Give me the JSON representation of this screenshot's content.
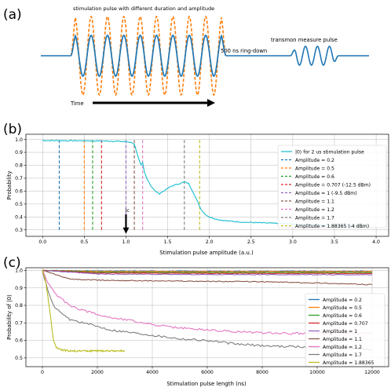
{
  "colors": {
    "c0": "#1f77b4",
    "c1": "#ff7f0e",
    "c2": "#2ca02c",
    "c3": "#d62728",
    "c4": "#9467bd",
    "c5": "#8c564b",
    "c6": "#e377c2",
    "c7": "#7f7f7f",
    "c8": "#bcbd22",
    "c9": "#17becf",
    "black": "#000000"
  },
  "panel_a": {
    "tag": "(a)",
    "pulse_label": "stimulation pulse with different duration and amplitude",
    "ringdown_label": "500 ns ring-down",
    "measure_label": "transmon measure pulse",
    "time_label": "Time"
  },
  "chart_data": [
    {
      "panel": "(b)",
      "type": "line",
      "xlabel": "Stimulation pulse amplitude (a.u.)",
      "ylabel": "Probability",
      "xlim": [
        -0.2,
        4.15
      ],
      "ylim": [
        0.25,
        1.04
      ],
      "xticks": [
        "0.0",
        "0.5",
        "1.0",
        "1.5",
        "2.0",
        "2.5",
        "3.0",
        "3.5",
        "4.0"
      ],
      "yticks": [
        "0.3",
        "0.4",
        "0.5",
        "0.6",
        "0.7",
        "0.8",
        "0.9",
        "1.0"
      ],
      "grid": true,
      "legend_position": "right",
      "annotation": {
        "text": "Ic",
        "x": 1.0,
        "arrow_from_y": 0.42,
        "arrow_to_y": 0.27
      },
      "series": [
        {
          "name": "|0⟩ for 2 us stimulation pulse",
          "color_key": "c9",
          "style": "solid",
          "points": [
            [
              0.0,
              0.992
            ],
            [
              0.3,
              0.99
            ],
            [
              0.5,
              0.99
            ],
            [
              0.7,
              0.988
            ],
            [
              0.9,
              0.986
            ],
            [
              1.0,
              0.982
            ],
            [
              1.05,
              0.98
            ],
            [
              1.1,
              0.965
            ],
            [
              1.15,
              0.85
            ],
            [
              1.18,
              0.8
            ],
            [
              1.2,
              0.82
            ],
            [
              1.22,
              0.75
            ],
            [
              1.25,
              0.7
            ],
            [
              1.3,
              0.64
            ],
            [
              1.35,
              0.6
            ],
            [
              1.4,
              0.58
            ],
            [
              1.45,
              0.6
            ],
            [
              1.5,
              0.62
            ],
            [
              1.55,
              0.64
            ],
            [
              1.6,
              0.65
            ],
            [
              1.65,
              0.66
            ],
            [
              1.7,
              0.67
            ],
            [
              1.75,
              0.66
            ],
            [
              1.8,
              0.6
            ],
            [
              1.85,
              0.53
            ],
            [
              1.9,
              0.46
            ],
            [
              1.95,
              0.42
            ],
            [
              2.0,
              0.4
            ],
            [
              2.1,
              0.38
            ],
            [
              2.2,
              0.37
            ],
            [
              2.4,
              0.36
            ],
            [
              2.6,
              0.355
            ],
            [
              2.8,
              0.35
            ],
            [
              3.0,
              0.345
            ],
            [
              3.2,
              0.34
            ],
            [
              3.5,
              0.335
            ],
            [
              3.9,
              0.333
            ]
          ]
        }
      ],
      "vlines": [
        {
          "name": "Amplitude = 0.2",
          "x": 0.2,
          "color_key": "c0"
        },
        {
          "name": "Amplitude = 0.5",
          "x": 0.5,
          "color_key": "c1"
        },
        {
          "name": "Amplitude = 0.6",
          "x": 0.6,
          "color_key": "c2"
        },
        {
          "name": "Amplitude = 0.707 (-12.5 dBm)",
          "x": 0.707,
          "color_key": "c3"
        },
        {
          "name": "Amplitude = 1 (-9.5 dBm)",
          "x": 1.0,
          "color_key": "c4"
        },
        {
          "name": "Amplitude = 1.1",
          "x": 1.1,
          "color_key": "c5"
        },
        {
          "name": "Amplitude = 1.2",
          "x": 1.2,
          "color_key": "c6"
        },
        {
          "name": "Amplitude = 1.7",
          "x": 1.7,
          "color_key": "c7"
        },
        {
          "name": "Amplitude = 1.88365 (-4 dBm)",
          "x": 1.88365,
          "color_key": "c8"
        }
      ]
    },
    {
      "panel": "(c)",
      "type": "line",
      "xlabel": "Stimulation pulse length (ns)",
      "ylabel": "Probability of |0⟩",
      "xlim": [
        -600,
        12600
      ],
      "ylim": [
        0.45,
        1.015
      ],
      "xticks": [
        "0",
        "2000",
        "4000",
        "6000",
        "8000",
        "10000",
        "12000"
      ],
      "yticks": [
        "0.5",
        "0.6",
        "0.7",
        "0.8",
        "0.9",
        "1.0"
      ],
      "grid": true,
      "legend_position": "right",
      "series": [
        {
          "name": "Amplitude = 0.2",
          "color_key": "c0",
          "points": [
            [
              0,
              1.0
            ],
            [
              2000,
              0.996
            ],
            [
              6000,
              0.995
            ],
            [
              12000,
              0.995
            ]
          ]
        },
        {
          "name": "Amplitude = 0.5",
          "color_key": "c1",
          "points": [
            [
              0,
              1.0
            ],
            [
              2000,
              0.994
            ],
            [
              6000,
              0.993
            ],
            [
              12000,
              0.993
            ]
          ]
        },
        {
          "name": "Amplitude = 0.6",
          "color_key": "c2",
          "points": [
            [
              0,
              1.0
            ],
            [
              2000,
              0.99
            ],
            [
              6000,
              0.988
            ],
            [
              12000,
              0.988
            ]
          ]
        },
        {
          "name": "Amplitude = 0.707",
          "color_key": "c3",
          "points": [
            [
              0,
              1.0
            ],
            [
              2000,
              0.985
            ],
            [
              6000,
              0.983
            ],
            [
              12000,
              0.982
            ]
          ]
        },
        {
          "name": "Amplitude = 1",
          "color_key": "c4",
          "points": [
            [
              0,
              1.0
            ],
            [
              2000,
              0.979
            ],
            [
              6000,
              0.976
            ],
            [
              12000,
              0.975
            ]
          ]
        },
        {
          "name": "Amplitude = 1.1",
          "color_key": "c5",
          "points": [
            [
              0,
              1.0
            ],
            [
              1000,
              0.95
            ],
            [
              2000,
              0.944
            ],
            [
              4000,
              0.94
            ],
            [
              8000,
              0.935
            ],
            [
              10000,
              0.928
            ],
            [
              12000,
              0.918
            ]
          ]
        },
        {
          "name": "Amplitude = 1.2",
          "color_key": "c6",
          "points": [
            [
              0,
              1.0
            ],
            [
              200,
              0.93
            ],
            [
              500,
              0.86
            ],
            [
              1000,
              0.8
            ],
            [
              1500,
              0.77
            ],
            [
              2000,
              0.75
            ],
            [
              2500,
              0.73
            ],
            [
              3000,
              0.72
            ],
            [
              4000,
              0.69
            ],
            [
              5000,
              0.67
            ],
            [
              6000,
              0.66
            ],
            [
              7000,
              0.65
            ],
            [
              8000,
              0.645
            ],
            [
              9000,
              0.64
            ],
            [
              10000,
              0.64
            ],
            [
              11000,
              0.64
            ],
            [
              12000,
              0.64
            ]
          ]
        },
        {
          "name": "Amplitude = 1.7",
          "color_key": "c7",
          "points": [
            [
              0,
              1.0
            ],
            [
              200,
              0.88
            ],
            [
              400,
              0.8
            ],
            [
              700,
              0.75
            ],
            [
              1000,
              0.72
            ],
            [
              1500,
              0.7
            ],
            [
              2000,
              0.68
            ],
            [
              2500,
              0.66
            ],
            [
              3000,
              0.65
            ],
            [
              4000,
              0.63
            ],
            [
              5000,
              0.61
            ],
            [
              6000,
              0.6
            ],
            [
              7000,
              0.58
            ],
            [
              8000,
              0.57
            ],
            [
              9000,
              0.565
            ],
            [
              10000,
              0.56
            ],
            [
              11000,
              0.555
            ],
            [
              12000,
              0.55
            ]
          ]
        },
        {
          "name": "Amplitude = 1.88365",
          "color_key": "c8",
          "points": [
            [
              0,
              1.0
            ],
            [
              100,
              0.95
            ],
            [
              200,
              0.85
            ],
            [
              300,
              0.73
            ],
            [
              400,
              0.6
            ],
            [
              500,
              0.56
            ],
            [
              700,
              0.545
            ],
            [
              1000,
              0.54
            ],
            [
              1500,
              0.54
            ],
            [
              2000,
              0.54
            ],
            [
              2500,
              0.54
            ],
            [
              3000,
              0.54
            ]
          ]
        }
      ]
    }
  ]
}
